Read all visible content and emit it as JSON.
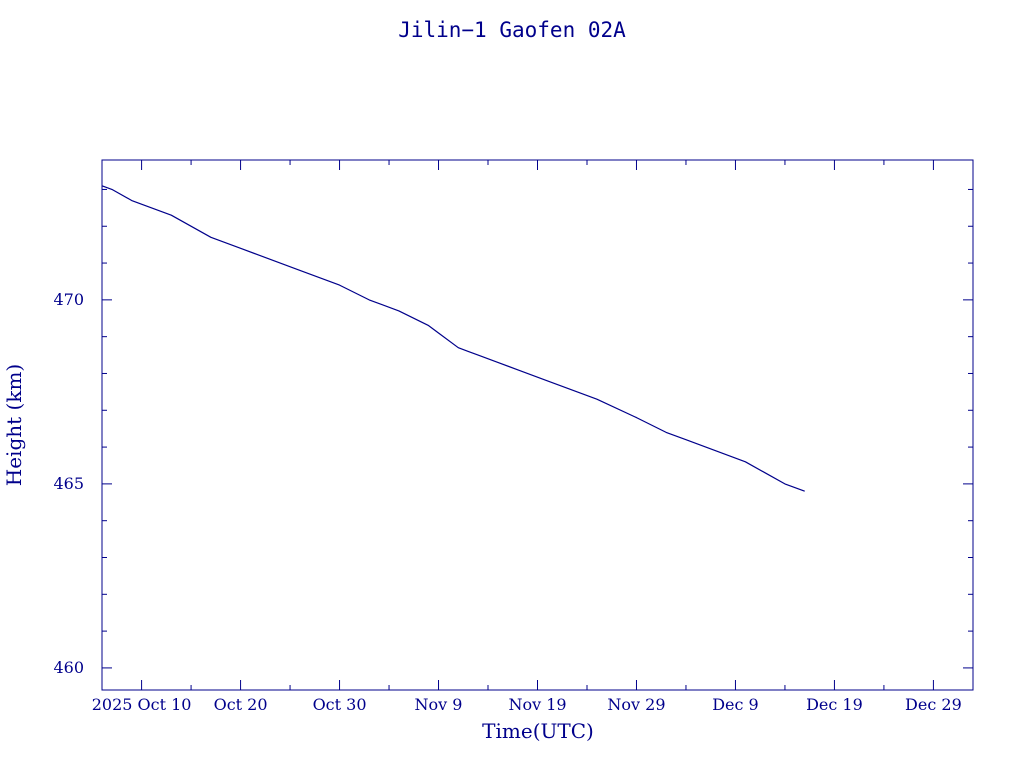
{
  "colors": {
    "ink": "#00008b",
    "background": "#ffffff"
  },
  "chart_data": {
    "type": "line",
    "title": "Jilin−1 Gaofen 02A",
    "xlabel": "Time(UTC)",
    "ylabel": "Height (km)",
    "x_axis_type": "date",
    "xlim": [
      "2025-10-06",
      "2026-01-02"
    ],
    "ylim": [
      459.4,
      473.8
    ],
    "x_tick_labels": [
      {
        "date": "2025-10-10",
        "label": "2025 Oct 10"
      },
      {
        "date": "2025-10-20",
        "label": "Oct 20"
      },
      {
        "date": "2025-10-30",
        "label": "Oct 30"
      },
      {
        "date": "2025-11-09",
        "label": "Nov  9"
      },
      {
        "date": "2025-11-19",
        "label": "Nov 19"
      },
      {
        "date": "2025-11-29",
        "label": "Nov 29"
      },
      {
        "date": "2025-12-09",
        "label": "Dec  9"
      },
      {
        "date": "2025-12-19",
        "label": "Dec 19"
      },
      {
        "date": "2025-12-29",
        "label": "Dec 29"
      }
    ],
    "x_minor_tick_dates": [
      "2025-10-15",
      "2025-10-25",
      "2025-11-04",
      "2025-11-14",
      "2025-11-24",
      "2025-12-04",
      "2025-12-14",
      "2025-12-24"
    ],
    "y_major_ticks": [
      460,
      465,
      470
    ],
    "y_tick_labels": [
      "460",
      "465",
      "470"
    ],
    "y_minor_ticks": [
      461,
      462,
      463,
      464,
      466,
      467,
      468,
      469,
      471,
      472,
      473
    ],
    "grid": false,
    "legend": "none",
    "series": [
      {
        "x": [
          "2025-10-06",
          "2025-10-07",
          "2025-10-09",
          "2025-10-13",
          "2025-10-17",
          "2025-10-20",
          "2025-10-22",
          "2025-10-26",
          "2025-10-30",
          "2025-11-02",
          "2025-11-05",
          "2025-11-08",
          "2025-11-09",
          "2025-11-11",
          "2025-11-12",
          "2025-11-13",
          "2025-11-15",
          "2025-11-17",
          "2025-11-19",
          "2025-11-22",
          "2025-11-25",
          "2025-11-29",
          "2025-12-02",
          "2025-12-04",
          "2025-12-06",
          "2025-12-08",
          "2025-12-10",
          "2025-12-12",
          "2025-12-14",
          "2025-12-15",
          "2025-12-16"
        ],
        "y": [
          473.1,
          473.0,
          472.7,
          472.3,
          471.7,
          471.4,
          471.2,
          470.8,
          470.4,
          470.0,
          469.7,
          469.3,
          469.1,
          468.7,
          468.6,
          468.5,
          468.3,
          468.1,
          467.9,
          467.6,
          467.3,
          466.8,
          466.4,
          466.2,
          466.0,
          465.8,
          465.6,
          465.3,
          465.0,
          464.9,
          464.8
        ]
      }
    ]
  }
}
